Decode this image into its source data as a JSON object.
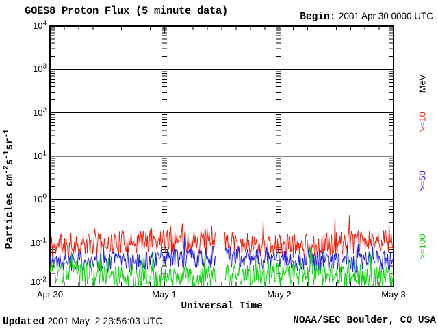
{
  "title": "GOES8 Proton Flux (5 minute data)",
  "header": {
    "begin_label": "Begin:",
    "begin_value": "2001 Apr 30 0000 UTC"
  },
  "y_axis": {
    "ticks": [
      {
        "base": "10",
        "exp": "4"
      },
      {
        "base": "10",
        "exp": "3"
      },
      {
        "base": "10",
        "exp": "2"
      },
      {
        "base": "10",
        "exp": "1"
      },
      {
        "base": "10",
        "exp": "0"
      },
      {
        "base": "10",
        "exp": "-1"
      },
      {
        "base": "10",
        "exp": "-2"
      }
    ],
    "label_parts": [
      {
        "text": "Particles cm"
      },
      {
        "sup": "-2"
      },
      {
        "text": "s"
      },
      {
        "sup": "-1"
      },
      {
        "text": "sr"
      },
      {
        "sup": "-1"
      }
    ]
  },
  "x_axis": {
    "label": "Universal Time",
    "ticks": [
      "Apr 30",
      "May 1",
      "May 2",
      "May 3"
    ]
  },
  "right_axis": {
    "unit": "MeV",
    "unit_color": "#000000",
    "labels": [
      {
        "text": ">=10",
        "color": "#f2200e"
      },
      {
        "text": ">=50",
        "color": "#2626d8"
      },
      {
        "text": ">=100",
        "color": "#17d017"
      }
    ]
  },
  "footer": {
    "updated_label": "Updated",
    "updated_value": "2001 May  2 23:56:03 UTC",
    "credit": "NOAA/SEC Boulder, CO USA"
  },
  "chart_data": {
    "type": "line",
    "title": "GOES8 Proton Flux (5 minute data)",
    "xlabel": "Universal Time",
    "ylabel": "Particles cm-2 s-1 sr-1",
    "x_tick_labels": [
      "Apr 30",
      "May 1",
      "May 2",
      "May 3"
    ],
    "x_range_days": 3,
    "x_minor_tick_hours": 3,
    "y_scale": "log10",
    "y_tick_values": [
      10000,
      1000,
      100,
      10,
      1,
      0.1,
      0.01
    ],
    "ylim_log10": [
      -2,
      4
    ],
    "grid_decades": [
      3,
      2,
      1,
      0,
      -1
    ],
    "grid": "solid horizontal line at every decade; dashed log-minor tick columns at interior day boundaries",
    "cadence_minutes": 5,
    "data_gap_days": [
      1.448,
      1.521
    ],
    "legend_position": "right-rotated",
    "series": [
      {
        "name": ">=10 MeV",
        "color": "#f2200e",
        "center_log": -1.0,
        "spread_log": 0.55,
        "spike_prob": 0.07,
        "spike_log": 0.5,
        "max_log": -0.36,
        "seed": 11,
        "approx_range": [
          0.05,
          0.45
        ],
        "approx_median": 0.1
      },
      {
        "name": ">=50 MeV",
        "color": "#2626d8",
        "center_log": -1.38,
        "spread_log": 0.5,
        "spike_prob": 0.06,
        "spike_log": 0.35,
        "max_log": -0.85,
        "seed": 22,
        "approx_range": [
          0.02,
          0.14
        ],
        "approx_median": 0.04
      },
      {
        "name": ">=100 MeV",
        "color": "#17d017",
        "center_log": -1.76,
        "spread_log": 0.6,
        "spike_prob": 0.06,
        "spike_log": 0.4,
        "max_log": -1.05,
        "seed": 33,
        "approx_range": [
          0.009,
          0.09
        ],
        "approx_median": 0.017
      }
    ]
  }
}
